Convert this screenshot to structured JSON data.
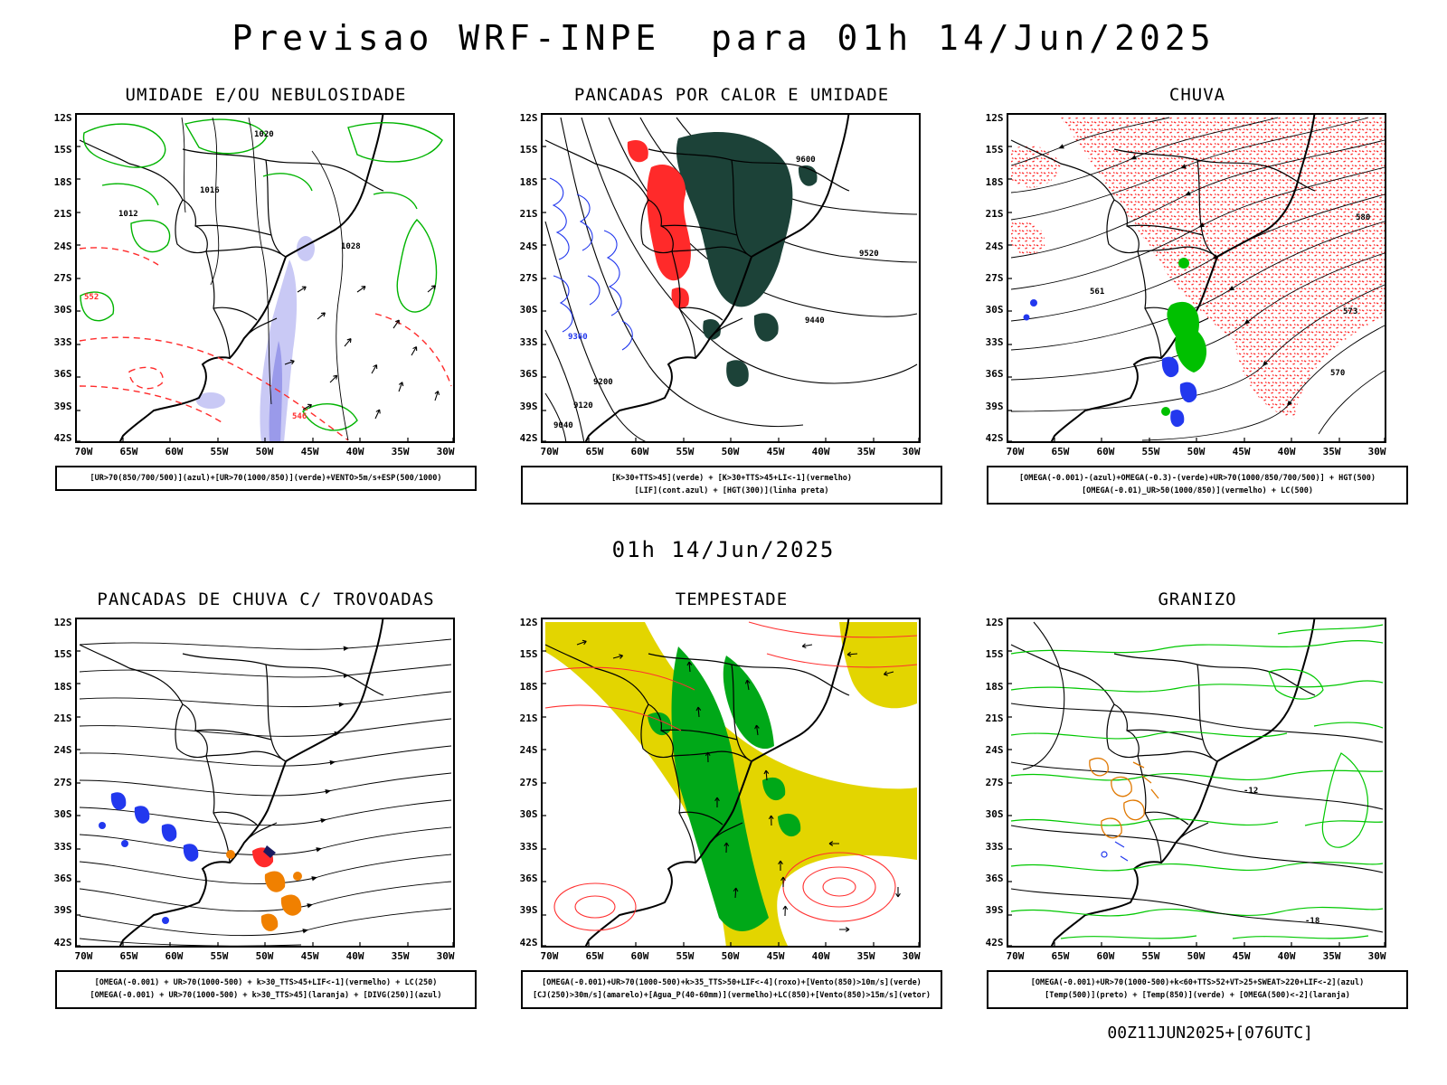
{
  "header": {
    "title": "Previsao WRF-INPE  para 01h 14/Jun/2025"
  },
  "subtitle": "01h 14/Jun/2025",
  "footer": {
    "timestamp": "00Z11JUN2025+[076UTC]"
  },
  "colors": {
    "contour_green": "#00b400",
    "alert_red": "#ff2a2a",
    "lif_blue": "#2238ee",
    "instability_teal": "#1c4238",
    "shower_orange": "#f08000",
    "storm_yellow": "#e3d500",
    "storm_green": "#00a818",
    "humidity_lavender": "#c9c9f5",
    "humidity_lavender_dark": "#9a9aea",
    "line_black": "#000000"
  },
  "axes": {
    "lat": [
      "12S",
      "15S",
      "18S",
      "21S",
      "24S",
      "27S",
      "30S",
      "33S",
      "36S",
      "39S",
      "42S"
    ],
    "lon": [
      "70W",
      "65W",
      "60W",
      "55W",
      "50W",
      "45W",
      "40W",
      "35W",
      "30W"
    ]
  },
  "panels": [
    {
      "id": "umidade",
      "title": "UMIDADE E/OU NEBULOSIDADE",
      "legend": [
        "[UR>70(850/700/500)](azul)+[UR>70(1000/850)](verde)+VENTO>5m/s+ESP(500/1000)"
      ],
      "map_labels": [
        "1016",
        "1020",
        "1028",
        "1012",
        "552",
        "546"
      ]
    },
    {
      "id": "pancadas-calor",
      "title": "PANCADAS POR CALOR E UMIDADE",
      "legend": [
        "[K>30+TTS>45](verde) + [K>30+TTS>45+LI<-1](vermelho)",
        "[LIF](cont.azul) + [HGT(300)](linha preta)"
      ],
      "map_labels": [
        "9600",
        "9520",
        "9440",
        "9360",
        "9200",
        "9120",
        "9040"
      ]
    },
    {
      "id": "chuva",
      "title": "CHUVA",
      "legend": [
        "[OMEGA(-0.001)-(azul)+OMEGA(-0.3)-(verde)+UR>70(1000/850/700/500)] + HGT(500)",
        "[OMEGA(-0.01)_UR>50(1000/850)](vermelho) + LC(500)"
      ],
      "map_labels": [
        "580",
        "573",
        "570",
        "561"
      ]
    },
    {
      "id": "pancadas-trovoadas",
      "title": "PANCADAS DE CHUVA C/ TROVOADAS",
      "legend": [
        "[OMEGA(-0.001) + UR>70(1000-500) + k>30_TTS>45+LIF<-1](vermelho) + LC(250)",
        "[OMEGA(-0.001) + UR>70(1000-500) + k>30_TTS>45](laranja) + [DIVG(250)](azul)"
      ],
      "map_labels": []
    },
    {
      "id": "tempestade",
      "title": "TEMPESTADE",
      "legend": [
        "[OMEGA(-0.001)+UR>70(1000-500)+k>35_TTS>50+LIF<-4](roxo)+[Vento(850)>10m/s](verde)",
        "[CJ(250)>30m/s](amarelo)+[Agua_P(40-60mm)](vermelho)+LC(850)+[Vento(850)>15m/s](vetor)"
      ],
      "map_labels": []
    },
    {
      "id": "granizo",
      "title": "GRANIZO",
      "legend": [
        "[OMEGA(-0.001)+UR>70(1000-500)+k<60+TTS>52+VT>25+SWEAT>220+LIF<-2](azul)",
        "[Temp(500)](preto) + [Temp(850)](verde) + [OMEGA(500)<-2](laranja)"
      ],
      "map_labels": [
        "-12",
        "-18"
      ]
    }
  ]
}
